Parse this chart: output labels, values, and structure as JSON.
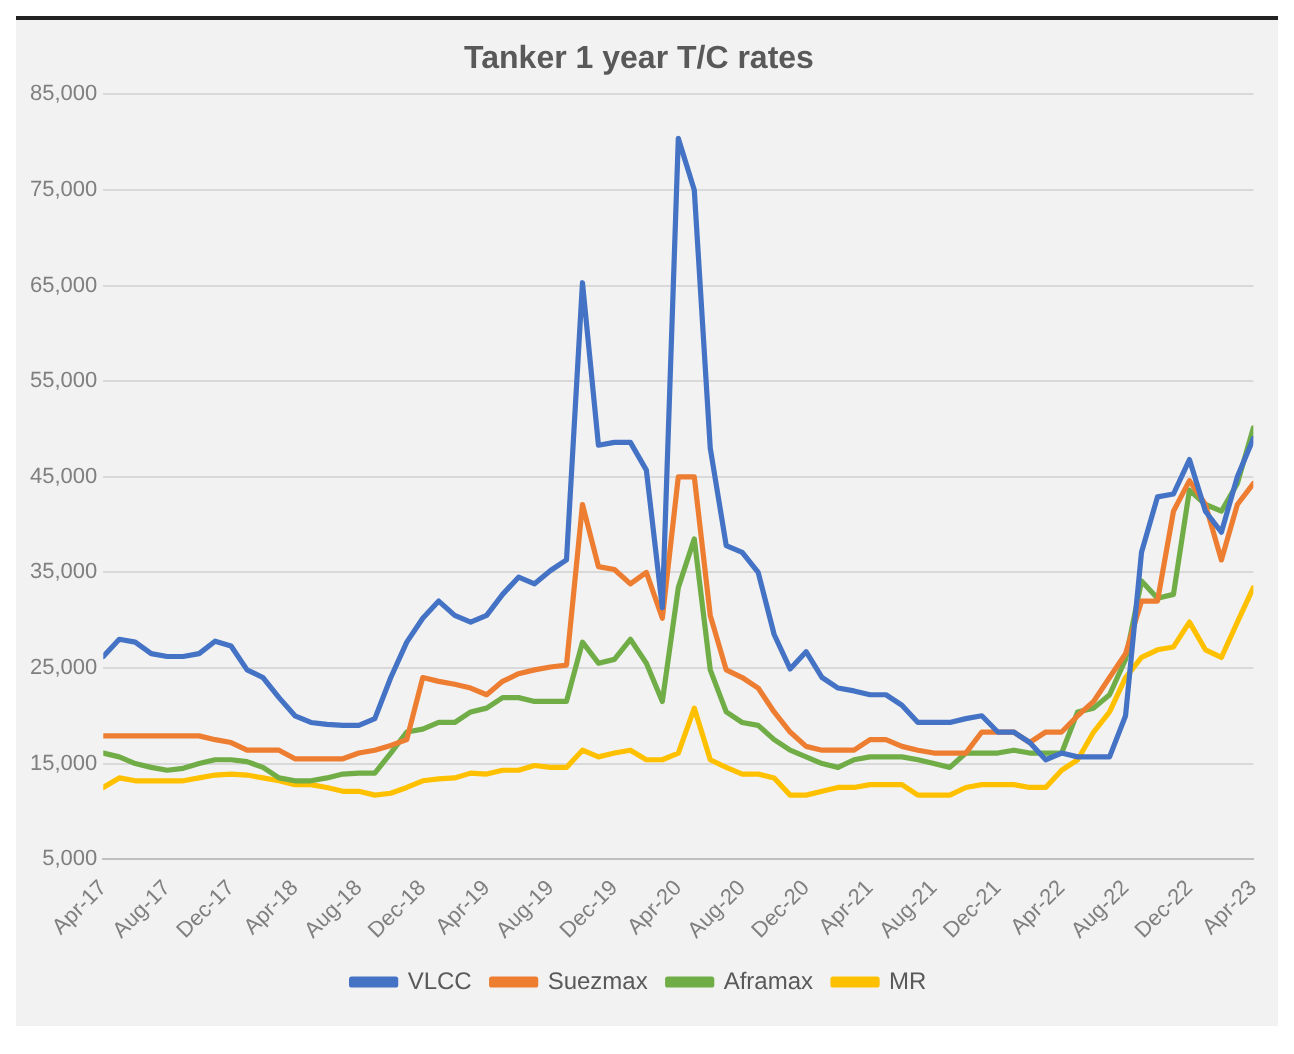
{
  "chart_data": {
    "type": "line",
    "title": "Tanker 1 year T/C rates",
    "x": [
      "2017-04",
      "2017-05",
      "2017-06",
      "2017-07",
      "2017-08",
      "2017-09",
      "2017-10",
      "2017-11",
      "2017-12",
      "2018-01",
      "2018-02",
      "2018-03",
      "2018-04",
      "2018-05",
      "2018-06",
      "2018-07",
      "2018-08",
      "2018-09",
      "2018-10",
      "2018-11",
      "2018-12",
      "2019-01",
      "2019-02",
      "2019-03",
      "2019-04",
      "2019-05",
      "2019-06",
      "2019-07",
      "2019-08",
      "2019-09",
      "2019-10",
      "2019-11",
      "2019-12",
      "2020-01",
      "2020-02",
      "2020-03",
      "2020-04",
      "2020-05",
      "2020-06",
      "2020-07",
      "2020-08",
      "2020-09",
      "2020-10",
      "2020-11",
      "2020-12",
      "2021-01",
      "2021-02",
      "2021-03",
      "2021-04",
      "2021-05",
      "2021-06",
      "2021-07",
      "2021-08",
      "2021-09",
      "2021-10",
      "2021-11",
      "2021-12",
      "2022-01",
      "2022-02",
      "2022-03",
      "2022-04",
      "2022-05",
      "2022-06",
      "2022-07",
      "2022-08",
      "2022-09",
      "2022-10",
      "2022-11",
      "2022-12",
      "2023-01",
      "2023-02",
      "2023-03",
      "2023-04"
    ],
    "series": [
      {
        "name": "VLCC",
        "color": "#4472c4",
        "values": [
          26200,
          28000,
          27700,
          26500,
          26200,
          26200,
          26500,
          27800,
          27300,
          24800,
          24000,
          21900,
          20000,
          19300,
          19100,
          19000,
          19000,
          19700,
          24000,
          27700,
          30200,
          32000,
          30500,
          29800,
          30500,
          32700,
          34500,
          33800,
          35200,
          36300,
          65300,
          48300,
          48600,
          48600,
          45700,
          31300,
          80400,
          75000,
          48000,
          37800,
          37100,
          35000,
          28500,
          24900,
          26700,
          24000,
          22900,
          22600,
          22200,
          22200,
          21100,
          19300,
          19300,
          19300,
          19700,
          20000,
          18300,
          18300,
          17200,
          15400,
          16100,
          15700,
          15700,
          15700,
          20000,
          37100,
          42900,
          43200,
          46800,
          41400,
          39200,
          45000,
          49000
        ]
      },
      {
        "name": "Suezmax",
        "color": "#ed7d31",
        "values": [
          17900,
          17900,
          17900,
          17900,
          17900,
          17900,
          17900,
          17500,
          17200,
          16400,
          16400,
          16400,
          15500,
          15500,
          15500,
          15500,
          16100,
          16400,
          16900,
          17500,
          24000,
          23600,
          23300,
          22900,
          22200,
          23600,
          24400,
          24800,
          25100,
          25300,
          42100,
          35600,
          35300,
          33800,
          35000,
          30200,
          45000,
          45000,
          30500,
          24800,
          24000,
          22900,
          20400,
          18300,
          16800,
          16400,
          16400,
          16400,
          17500,
          17500,
          16800,
          16400,
          16100,
          16100,
          16100,
          18300,
          18300,
          18300,
          17200,
          18300,
          18300,
          20000,
          21500,
          24000,
          26500,
          32000,
          32000,
          41400,
          44600,
          42100,
          36300,
          42100,
          44300
        ]
      },
      {
        "name": "Aframax",
        "color": "#70ad47",
        "values": [
          16100,
          15700,
          15000,
          14600,
          14300,
          14500,
          15000,
          15400,
          15400,
          15200,
          14600,
          13500,
          13200,
          13200,
          13500,
          13900,
          14000,
          14000,
          16100,
          18300,
          18600,
          19300,
          19300,
          20400,
          20800,
          21900,
          21900,
          21500,
          21500,
          21500,
          27700,
          25500,
          25900,
          28000,
          25500,
          21500,
          33400,
          38500,
          24800,
          20400,
          19300,
          19000,
          17500,
          16400,
          15700,
          15000,
          14600,
          15400,
          15700,
          15700,
          15700,
          15400,
          15000,
          14600,
          16100,
          16100,
          16100,
          16400,
          16100,
          16100,
          16100,
          20400,
          20800,
          22200,
          25900,
          34100,
          32300,
          32700,
          43600,
          42100,
          41400,
          44300,
          50100
        ]
      },
      {
        "name": "MR",
        "color": "#ffc000",
        "values": [
          12500,
          13500,
          13200,
          13200,
          13200,
          13200,
          13500,
          13800,
          13900,
          13800,
          13500,
          13200,
          12800,
          12800,
          12500,
          12100,
          12100,
          11700,
          11900,
          12500,
          13200,
          13400,
          13500,
          14000,
          13900,
          14300,
          14300,
          14800,
          14600,
          14600,
          16400,
          15700,
          16100,
          16400,
          15400,
          15400,
          16100,
          20800,
          15400,
          14600,
          13900,
          13900,
          13500,
          11700,
          11700,
          12100,
          12500,
          12500,
          12800,
          12800,
          12800,
          11700,
          11700,
          11700,
          12500,
          12800,
          12800,
          12800,
          12500,
          12500,
          14300,
          15400,
          18300,
          20400,
          24000,
          26100,
          26900,
          27200,
          29800,
          26900,
          26100,
          29800,
          33400
        ]
      }
    ],
    "xlim": [
      "2017-04",
      "2023-04"
    ],
    "xticks": [
      {
        "value": "2017-04",
        "label": "Apr-17"
      },
      {
        "value": "2017-08",
        "label": "Aug-17"
      },
      {
        "value": "2017-12",
        "label": "Dec-17"
      },
      {
        "value": "2018-04",
        "label": "Apr-18"
      },
      {
        "value": "2018-08",
        "label": "Aug-18"
      },
      {
        "value": "2018-12",
        "label": "Dec-18"
      },
      {
        "value": "2019-04",
        "label": "Apr-19"
      },
      {
        "value": "2019-08",
        "label": "Aug-19"
      },
      {
        "value": "2019-12",
        "label": "Dec-19"
      },
      {
        "value": "2020-04",
        "label": "Apr-20"
      },
      {
        "value": "2020-08",
        "label": "Aug-20"
      },
      {
        "value": "2020-12",
        "label": "Dec-20"
      },
      {
        "value": "2021-04",
        "label": "Apr-21"
      },
      {
        "value": "2021-08",
        "label": "Aug-21"
      },
      {
        "value": "2021-12",
        "label": "Dec-21"
      },
      {
        "value": "2022-04",
        "label": "Apr-22"
      },
      {
        "value": "2022-08",
        "label": "Aug-22"
      },
      {
        "value": "2022-12",
        "label": "Dec-22"
      },
      {
        "value": "2023-04",
        "label": "Apr-23"
      }
    ],
    "ylim": [
      5000,
      85000
    ],
    "yticks": [
      {
        "value": 5000,
        "label": "5,000"
      },
      {
        "value": 15000,
        "label": "15,000"
      },
      {
        "value": 25000,
        "label": "25,000"
      },
      {
        "value": 35000,
        "label": "35,000"
      },
      {
        "value": 45000,
        "label": "45,000"
      },
      {
        "value": 55000,
        "label": "55,000"
      },
      {
        "value": 65000,
        "label": "65,000"
      },
      {
        "value": 75000,
        "label": "75,000"
      },
      {
        "value": 85000,
        "label": "85,000"
      }
    ],
    "grid": "y",
    "legend": "bottom",
    "marker": "none",
    "line_style": "solid"
  }
}
